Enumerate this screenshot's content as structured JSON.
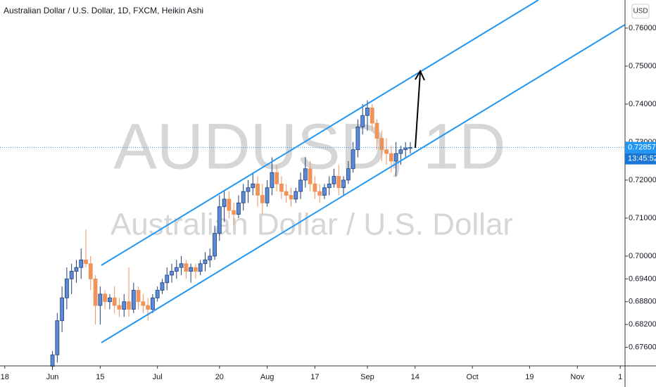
{
  "chart_data": {
    "type": "candlestick",
    "title": "Australian Dollar / U.S. Dollar, 1D, FXCM, Heikin Ashi",
    "watermark": "AUDUSD, 1D",
    "watermark_subtitle": "Australian Dollar / U.S. Dollar",
    "currency_button": "USD",
    "last_price_label": "0.72857",
    "countdown": "13:45:52",
    "up_color": "#5b8ad6",
    "down_color": "#f0935a",
    "categories": [
      null,
      null,
      null,
      null,
      null,
      null,
      null,
      null,
      null,
      null,
      null,
      null,
      null,
      null,
      null,
      null,
      null,
      null,
      null,
      null,
      null,
      null,
      null,
      null,
      null,
      null,
      null,
      null,
      null,
      null,
      null,
      null,
      null,
      null,
      null,
      null,
      null,
      null,
      null,
      null,
      null,
      null,
      null,
      null,
      null,
      null,
      null,
      null,
      null,
      null,
      null,
      null,
      null,
      null,
      null,
      null,
      null,
      null,
      null,
      null,
      null,
      null,
      null,
      null,
      null,
      null,
      null,
      null,
      null,
      null,
      null,
      null,
      null,
      null,
      null,
      null
    ],
    "open": [
      0.671,
      0.674,
      0.683,
      0.689,
      0.694,
      0.696,
      0.697,
      0.699,
      0.698,
      0.694,
      0.687,
      0.69,
      0.688,
      0.689,
      0.687,
      0.686,
      0.688,
      0.686,
      0.691,
      0.688,
      0.687,
      0.686,
      0.689,
      0.691,
      0.693,
      0.695,
      0.696,
      0.697,
      0.698,
      0.696,
      0.697,
      0.696,
      0.698,
      0.699,
      0.7,
      0.706,
      0.713,
      0.715,
      0.712,
      0.711,
      0.714,
      0.717,
      0.718,
      0.719,
      0.716,
      0.714,
      0.718,
      0.722,
      0.719,
      0.717,
      0.716,
      0.715,
      0.717,
      0.72,
      0.723,
      0.719,
      0.717,
      0.716,
      0.718,
      0.719,
      0.721,
      0.718,
      0.72,
      0.723,
      0.728,
      0.734,
      0.737,
      0.739,
      0.735,
      0.731,
      0.728,
      0.727,
      0.725,
      0.727,
      0.728,
      0.7285
    ],
    "high": [
      0.675,
      0.685,
      0.692,
      0.697,
      0.698,
      0.699,
      0.702,
      0.707,
      0.7,
      0.695,
      0.692,
      0.691,
      0.69,
      0.692,
      0.689,
      0.69,
      0.697,
      0.693,
      0.692,
      0.69,
      0.689,
      0.69,
      0.692,
      0.694,
      0.697,
      0.698,
      0.699,
      0.7,
      0.699,
      0.698,
      0.698,
      0.699,
      0.701,
      0.702,
      0.708,
      0.716,
      0.717,
      0.717,
      0.714,
      0.716,
      0.719,
      0.72,
      0.722,
      0.721,
      0.719,
      0.72,
      0.726,
      0.724,
      0.721,
      0.719,
      0.718,
      0.718,
      0.722,
      0.726,
      0.725,
      0.721,
      0.719,
      0.719,
      0.721,
      0.723,
      0.724,
      0.721,
      0.725,
      0.73,
      0.736,
      0.74,
      0.741,
      0.74,
      0.736,
      0.733,
      0.731,
      0.729,
      0.73,
      0.729,
      0.73,
      0.73
    ],
    "low": [
      0.67,
      0.672,
      0.68,
      0.686,
      0.69,
      0.693,
      0.694,
      0.697,
      0.691,
      0.682,
      0.682,
      0.686,
      0.686,
      0.685,
      0.684,
      0.684,
      0.684,
      0.685,
      0.686,
      0.685,
      0.683,
      0.685,
      0.688,
      0.69,
      0.691,
      0.693,
      0.694,
      0.695,
      0.694,
      0.693,
      0.694,
      0.695,
      0.696,
      0.697,
      0.699,
      0.704,
      0.709,
      0.71,
      0.708,
      0.71,
      0.712,
      0.714,
      0.716,
      0.713,
      0.711,
      0.713,
      0.716,
      0.717,
      0.715,
      0.714,
      0.713,
      0.714,
      0.715,
      0.718,
      0.717,
      0.715,
      0.714,
      0.715,
      0.716,
      0.718,
      0.716,
      0.716,
      0.719,
      0.722,
      0.726,
      0.732,
      0.733,
      0.733,
      0.728,
      0.725,
      0.724,
      0.722,
      0.721,
      0.724,
      0.726,
      0.727
    ],
    "close": [
      0.674,
      0.683,
      0.689,
      0.694,
      0.696,
      0.697,
      0.699,
      0.698,
      0.694,
      0.687,
      0.69,
      0.688,
      0.689,
      0.687,
      0.686,
      0.688,
      0.686,
      0.691,
      0.688,
      0.687,
      0.686,
      0.689,
      0.691,
      0.693,
      0.695,
      0.696,
      0.697,
      0.698,
      0.696,
      0.697,
      0.696,
      0.698,
      0.699,
      0.7,
      0.706,
      0.713,
      0.715,
      0.712,
      0.711,
      0.714,
      0.717,
      0.718,
      0.719,
      0.716,
      0.714,
      0.718,
      0.722,
      0.719,
      0.717,
      0.716,
      0.715,
      0.717,
      0.72,
      0.723,
      0.719,
      0.717,
      0.716,
      0.718,
      0.719,
      0.721,
      0.718,
      0.72,
      0.723,
      0.728,
      0.734,
      0.737,
      0.739,
      0.735,
      0.731,
      0.728,
      0.727,
      0.725,
      0.727,
      0.728,
      0.7285,
      0.72857
    ],
    "xlim": [
      -11,
      120
    ],
    "ylim": [
      0.6711,
      0.7674
    ],
    "xticks": [
      {
        "value": -10,
        "label": "18"
      },
      {
        "value": 0,
        "label": "Jun"
      },
      {
        "value": 10,
        "label": "15"
      },
      {
        "value": 22,
        "label": "Jul"
      },
      {
        "value": 35,
        "label": "20"
      },
      {
        "value": 45,
        "label": "Aug"
      },
      {
        "value": 55,
        "label": "17"
      },
      {
        "value": 66,
        "label": "Sep"
      },
      {
        "value": 76,
        "label": "14"
      },
      {
        "value": 88,
        "label": "Oct"
      },
      {
        "value": 100,
        "label": "19"
      },
      {
        "value": 110,
        "label": "Nov"
      },
      {
        "value": 119,
        "label": "1"
      }
    ],
    "yticks": [
      {
        "value": 0.676,
        "label": "0.67600"
      },
      {
        "value": 0.682,
        "label": "0.68200"
      },
      {
        "value": 0.688,
        "label": "0.68800"
      },
      {
        "value": 0.694,
        "label": "0.69400"
      },
      {
        "value": 0.7,
        "label": "0.70000"
      },
      {
        "value": 0.71,
        "label": "0.71000"
      },
      {
        "value": 0.72,
        "label": "0.72000"
      },
      {
        "value": 0.73,
        "label": "0.73000"
      },
      {
        "value": 0.74,
        "label": "0.74000"
      },
      {
        "value": 0.75,
        "label": "0.75000"
      },
      {
        "value": 0.76,
        "label": "0.76000"
      }
    ]
  }
}
